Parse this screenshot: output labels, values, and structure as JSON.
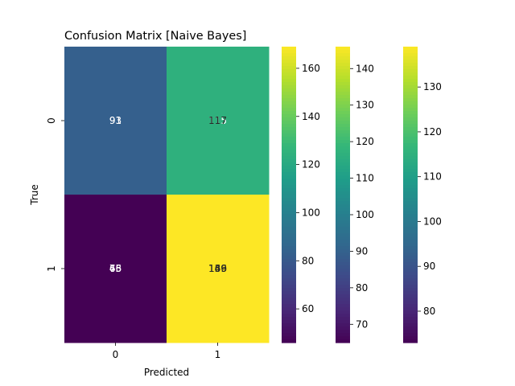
{
  "chart_data": {
    "type": "heatmap",
    "title": "Confusion Matrix [Naive Bayes]",
    "xlabel": "Predicted",
    "ylabel": "True",
    "x_tick_labels": [
      "0",
      "1"
    ],
    "y_tick_labels": [
      "0",
      "1"
    ],
    "colormap": "viridis",
    "note": "Three overlaid heatmaps (shared axes); cell annotations overlap in the original.",
    "layers": [
      {
        "cells": [
          [
            91,
            115
          ],
          [
            46,
            169
          ]
        ],
        "annotations": [
          [
            "91",
            "115"
          ],
          [
            "46",
            "169"
          ]
        ],
        "colorbar": {
          "vmin": 46,
          "vmax": 169,
          "ticks": [
            60,
            80,
            100,
            120,
            140,
            160
          ]
        }
      },
      {
        "cells": [
          [
            91,
            117
          ],
          [
            65,
            146
          ]
        ],
        "annotations": [
          [
            "",
            "117"
          ],
          [
            "65",
            "146"
          ]
        ],
        "colorbar": {
          "vmin": 65,
          "vmax": 146,
          "ticks": [
            70,
            80,
            90,
            100,
            110,
            120,
            130,
            140
          ]
        }
      },
      {
        "cells": [
          [
            93,
            115
          ],
          [
            73,
            139
          ]
        ],
        "annotations": [
          [
            "93",
            ""
          ],
          [
            "73",
            "139"
          ]
        ],
        "colorbar": {
          "vmin": 73,
          "vmax": 139,
          "ticks": [
            80,
            90,
            100,
            110,
            120,
            130
          ]
        }
      }
    ]
  }
}
